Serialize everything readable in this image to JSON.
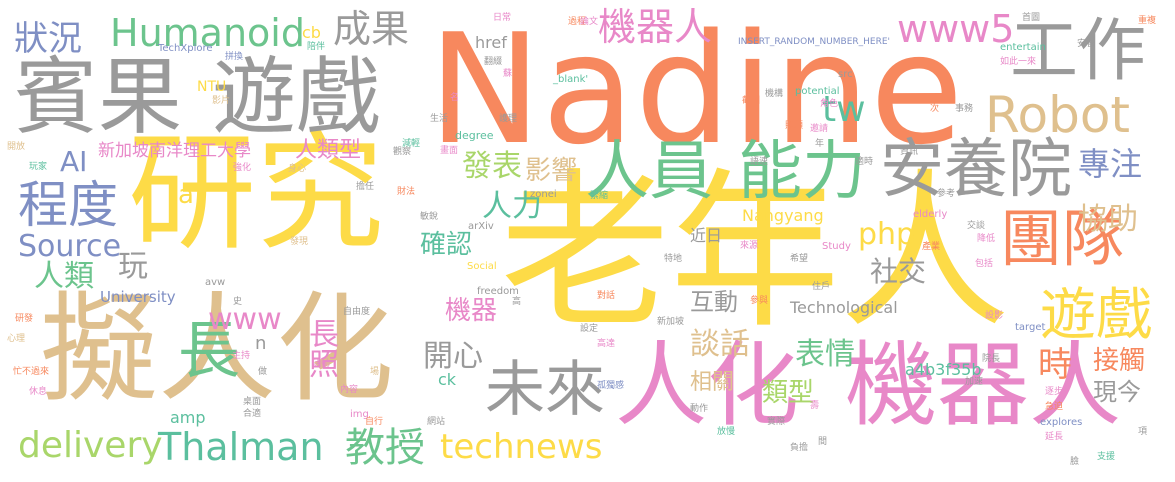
{
  "colors": {
    "yellow": "#fddb47",
    "gray": "#9a9a9a",
    "tan": "#dfc08e",
    "orange": "#f7885e",
    "pink": "#e888c8",
    "green": "#6cc48d",
    "teal": "#5bbf9e",
    "blue": "#7f8fc4",
    "lightgreen": "#a9d66a"
  },
  "words": [
    {
      "text": "老年人",
      "color": "yellow"
    },
    {
      "text": "研究",
      "color": "yellow"
    },
    {
      "text": "Nadine",
      "color": "orange"
    },
    {
      "text": "擬人化",
      "color": "tan"
    },
    {
      "text": "人化",
      "color": "pink"
    },
    {
      "text": "機器人",
      "color": "pink"
    },
    {
      "text": "賓果",
      "color": "gray"
    },
    {
      "text": "遊戲",
      "color": "gray"
    },
    {
      "text": "工作",
      "color": "gray"
    },
    {
      "text": "Robot",
      "color": "tan"
    },
    {
      "text": "安養院",
      "color": "gray"
    },
    {
      "text": "團隊",
      "color": "orange"
    },
    {
      "text": "遊戲",
      "color": "yellow"
    },
    {
      "text": "人員",
      "color": "green"
    },
    {
      "text": "能力",
      "color": "green"
    },
    {
      "text": "未來",
      "color": "gray"
    },
    {
      "text": "長照",
      "color": "pink"
    },
    {
      "text": "長",
      "color": "green"
    },
    {
      "text": "程度",
      "color": "blue"
    },
    {
      "text": "Thalman",
      "color": "teal"
    },
    {
      "text": "教授",
      "color": "green"
    },
    {
      "text": "technews",
      "color": "yellow"
    },
    {
      "text": "delivery",
      "color": "lightgreen"
    },
    {
      "text": "Humanoid",
      "color": "green"
    },
    {
      "text": "狀況",
      "color": "blue"
    },
    {
      "text": "成果",
      "color": "gray"
    },
    {
      "text": "機器人",
      "color": "pink"
    },
    {
      "text": "www5",
      "color": "pink"
    },
    {
      "text": "tw",
      "color": "teal"
    },
    {
      "text": "專注",
      "color": "blue"
    },
    {
      "text": "協助",
      "color": "tan"
    },
    {
      "text": "Source",
      "color": "blue"
    },
    {
      "text": "人類",
      "color": "green"
    },
    {
      "text": "AI",
      "color": "blue"
    },
    {
      "text": "發表",
      "color": "lightgreen"
    },
    {
      "text": "影響",
      "color": "tan"
    },
    {
      "text": "人力",
      "color": "teal"
    },
    {
      "text": "確認",
      "color": "teal"
    },
    {
      "text": "php",
      "color": "yellow"
    },
    {
      "text": "社交",
      "color": "gray"
    },
    {
      "text": "互動",
      "color": "gray"
    },
    {
      "text": "時",
      "color": "orange"
    },
    {
      "text": "接觸",
      "color": "orange"
    },
    {
      "text": "現今",
      "color": "gray"
    },
    {
      "text": "www",
      "color": "pink"
    },
    {
      "text": "玩",
      "color": "gray"
    },
    {
      "text": "開心",
      "color": "gray"
    },
    {
      "text": "談話",
      "color": "tan"
    },
    {
      "text": "表情",
      "color": "green"
    },
    {
      "text": "類型",
      "color": "lightgreen"
    },
    {
      "text": "相關",
      "color": "tan"
    },
    {
      "text": "機器",
      "color": "pink"
    },
    {
      "text": "人類型",
      "color": "pink"
    },
    {
      "text": "新加坡南洋理工大學",
      "color": "pink"
    },
    {
      "text": "a4b3f35b",
      "color": "teal"
    },
    {
      "text": "Nangyang",
      "color": "yellow"
    },
    {
      "text": "Technological",
      "color": "gray"
    },
    {
      "text": "University",
      "color": "blue"
    },
    {
      "text": "href",
      "color": "gray"
    },
    {
      "text": "cb",
      "color": "yellow"
    },
    {
      "text": "a",
      "color": "yellow"
    },
    {
      "text": "amp",
      "color": "teal"
    },
    {
      "text": "ck",
      "color": "teal"
    },
    {
      "text": "n",
      "color": "gray"
    },
    {
      "text": "NTU",
      "color": "yellow"
    },
    {
      "text": "近日",
      "color": "gray"
    },
    {
      "text": "TechXplore",
      "color": "blue"
    },
    {
      "text": "_blank'",
      "color": "teal"
    },
    {
      "text": "INSERT_RANDOM_NUMBER_HERE'",
      "color": "blue"
    },
    {
      "text": "entertain",
      "color": "teal"
    },
    {
      "text": "potential",
      "color": "teal"
    },
    {
      "text": "src",
      "color": "gray"
    },
    {
      "text": "degree",
      "color": "teal"
    },
    {
      "text": "arXiv",
      "color": "gray"
    },
    {
      "text": "zonei",
      "color": "gray"
    },
    {
      "text": "elderly",
      "color": "pink"
    },
    {
      "text": "Study",
      "color": "pink"
    },
    {
      "text": "freedom",
      "color": "gray"
    },
    {
      "text": "Social",
      "color": "yellow"
    },
    {
      "text": "avw",
      "color": "gray"
    },
    {
      "text": "target",
      "color": "blue"
    },
    {
      "text": "explores",
      "color": "blue"
    },
    {
      "text": "img",
      "color": "pink"
    },
    {
      "text": "日常",
      "color": "pink"
    },
    {
      "text": "過程",
      "color": "orange"
    },
    {
      "text": "論文",
      "color": "pink"
    },
    {
      "text": "首圖",
      "color": "gray"
    },
    {
      "text": "重複",
      "color": "orange"
    },
    {
      "text": "安養",
      "color": "gray"
    },
    {
      "text": "如此一來",
      "color": "pink"
    },
    {
      "text": "陪伴",
      "color": "teal"
    },
    {
      "text": "拼換",
      "color": "blue"
    },
    {
      "text": "翻綴",
      "color": "gray"
    },
    {
      "text": "蘇",
      "color": "pink"
    },
    {
      "text": "機構",
      "color": "gray"
    },
    {
      "text": "角色",
      "color": "pink"
    },
    {
      "text": "截圖",
      "color": "orange"
    },
    {
      "text": "影片",
      "color": "tan"
    },
    {
      "text": "名",
      "color": "pink"
    },
    {
      "text": "生活",
      "color": "gray"
    },
    {
      "text": "護理",
      "color": "gray"
    },
    {
      "text": "減輕",
      "color": "teal"
    },
    {
      "text": "觀察",
      "color": "gray"
    },
    {
      "text": "畫面",
      "color": "pink"
    },
    {
      "text": "開放",
      "color": "tan"
    },
    {
      "text": "玩家",
      "color": "teal"
    },
    {
      "text": "強化",
      "color": "pink"
    },
    {
      "text": "身心",
      "color": "tan"
    },
    {
      "text": "擔任",
      "color": "gray"
    },
    {
      "text": "發現",
      "color": "tan"
    },
    {
      "text": "財法",
      "color": "orange"
    },
    {
      "text": "敏銳",
      "color": "gray"
    },
    {
      "text": "緊縮",
      "color": "teal"
    },
    {
      "text": "參考",
      "color": "gray"
    },
    {
      "text": "交談",
      "color": "gray"
    },
    {
      "text": "降低",
      "color": "pink"
    },
    {
      "text": "來源",
      "color": "pink"
    },
    {
      "text": "特地",
      "color": "gray"
    },
    {
      "text": "希望",
      "color": "gray"
    },
    {
      "text": "產業",
      "color": "orange"
    },
    {
      "text": "包括",
      "color": "pink"
    },
    {
      "text": "對話",
      "color": "orange"
    },
    {
      "text": "參與",
      "color": "orange"
    },
    {
      "text": "住戶",
      "color": "gray"
    },
    {
      "text": "設定",
      "color": "gray"
    },
    {
      "text": "新加坡",
      "color": "gray"
    },
    {
      "text": "高達",
      "color": "pink"
    },
    {
      "text": "高",
      "color": "gray"
    },
    {
      "text": "自由度",
      "color": "gray"
    },
    {
      "text": "研發",
      "color": "orange"
    },
    {
      "text": "心理",
      "color": "tan"
    },
    {
      "text": "主持",
      "color": "pink"
    },
    {
      "text": "活動",
      "color": "pink"
    },
    {
      "text": "做",
      "color": "gray"
    },
    {
      "text": "忙不過來",
      "color": "orange"
    },
    {
      "text": "休息",
      "color": "pink"
    },
    {
      "text": "內容",
      "color": "pink"
    },
    {
      "text": "桌面",
      "color": "gray"
    },
    {
      "text": "合適",
      "color": "gray"
    },
    {
      "text": "自行",
      "color": "orange"
    },
    {
      "text": "網站",
      "color": "gray"
    },
    {
      "text": "孤獨感",
      "color": "blue"
    },
    {
      "text": "動作",
      "color": "gray"
    },
    {
      "text": "放慢",
      "color": "teal"
    },
    {
      "text": "實際",
      "color": "gray"
    },
    {
      "text": "負擔",
      "color": "gray"
    },
    {
      "text": "間",
      "color": "gray"
    },
    {
      "text": "院長",
      "color": "gray"
    },
    {
      "text": "加速",
      "color": "gray"
    },
    {
      "text": "逐步",
      "color": "pink"
    },
    {
      "text": "急迫",
      "color": "orange"
    },
    {
      "text": "延長",
      "color": "pink"
    },
    {
      "text": "臉",
      "color": "gray"
    },
    {
      "text": "支援",
      "color": "teal"
    },
    {
      "text": "項",
      "color": "gray"
    },
    {
      "text": "壽",
      "color": "pink"
    },
    {
      "text": "年",
      "color": "gray"
    },
    {
      "text": "場",
      "color": "tan"
    },
    {
      "text": "次",
      "color": "orange"
    },
    {
      "text": "事務",
      "color": "gray"
    },
    {
      "text": "照顧",
      "color": "orange"
    },
    {
      "text": "邀請",
      "color": "pink"
    },
    {
      "text": "適時",
      "color": "gray"
    },
    {
      "text": "語速",
      "color": "gray"
    },
    {
      "text": "資訊",
      "color": "gray"
    },
    {
      "text": "史",
      "color": "gray"
    },
    {
      "text": "設影",
      "color": "pink"
    }
  ]
}
